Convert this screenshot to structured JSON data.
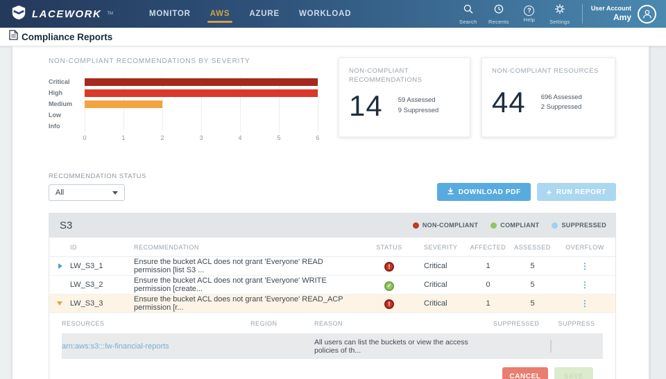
{
  "nav": {
    "brand": "LACEWORK",
    "items": [
      {
        "label": "MONITOR",
        "active": false
      },
      {
        "label": "AWS",
        "active": true
      },
      {
        "label": "AZURE",
        "active": false
      },
      {
        "label": "WORKLOAD",
        "active": false
      }
    ],
    "tools": [
      {
        "label": "Search"
      },
      {
        "label": "Recents"
      },
      {
        "label": "Help"
      },
      {
        "label": "Settings"
      }
    ],
    "user": {
      "title": "User Account",
      "name": "Amy"
    }
  },
  "page": {
    "title": "Compliance Reports"
  },
  "chart_data": {
    "type": "bar",
    "orientation": "horizontal",
    "title": "NON-COMPLIANT RECOMMENDATIONS BY SEVERITY",
    "categories": [
      "Critical",
      "High",
      "Medium",
      "Low",
      "Info"
    ],
    "values": [
      6,
      6,
      2,
      0,
      0
    ],
    "colors": [
      "#a5291c",
      "#da392a",
      "#f1a43f",
      "#cccccc",
      "#cccccc"
    ],
    "xlim": [
      0,
      6
    ],
    "xticks": [
      0,
      1,
      2,
      3,
      4,
      5,
      6
    ],
    "grid": "vertical"
  },
  "summary_cards": [
    {
      "title": "NON-COMPLIANT RECOMMENDATIONS",
      "value": "14",
      "line1": "59 Assessed",
      "line2": "9 Suppressed"
    },
    {
      "title": "NON-COMPLIANT RESOURCES",
      "value": "44",
      "line1": "696 Assessed",
      "line2": "2 Suppressed"
    }
  ],
  "filter": {
    "label": "RECOMMENDATION STATUS",
    "value": "All"
  },
  "actions": {
    "download_label": "DOWNLOAD PDF",
    "run_label": "RUN REPORT"
  },
  "table": {
    "section_title": "S3",
    "legend": [
      {
        "label": "NON-COMPLIANT",
        "color": "#c0392b"
      },
      {
        "label": "COMPLIANT",
        "color": "#94c363"
      },
      {
        "label": "SUPPRESSED",
        "color": "#9fd1ef"
      }
    ],
    "columns": [
      "ID",
      "RECOMMENDATION",
      "STATUS",
      "SEVERITY",
      "AFFECTED",
      "ASSESSED",
      "OVERFLOW"
    ],
    "rows": [
      {
        "id": "LW_S3_1",
        "recommendation": "Ensure the bucket ACL does not grant 'Everyone' READ permission [list S3 ...",
        "status": "non-compliant",
        "severity": "Critical",
        "affected": "1",
        "assessed": "5"
      },
      {
        "id": "LW_S3_2",
        "recommendation": "Ensure the bucket ACL does not grant 'Everyone' WRITE permission [create...",
        "status": "compliant",
        "severity": "Critical",
        "affected": "0",
        "assessed": "5"
      },
      {
        "id": "LW_S3_3",
        "recommendation": "Ensure the bucket ACL does not grant 'Everyone' READ_ACP permission [r...",
        "status": "non-compliant",
        "severity": "Critical",
        "affected": "1",
        "assessed": "5"
      }
    ],
    "detail": {
      "columns": [
        "RESOURCES",
        "REGION",
        "REASON",
        "SUPPRESSED",
        "SUPPRESS"
      ],
      "row": {
        "resource": "arn:aws:s3:::lw-financial-reports",
        "region": "",
        "reason": "All users can list the buckets or view the access policies of th...",
        "suppressed": ""
      },
      "cancel_label": "CANCEL",
      "save_label": "SAVE"
    }
  }
}
